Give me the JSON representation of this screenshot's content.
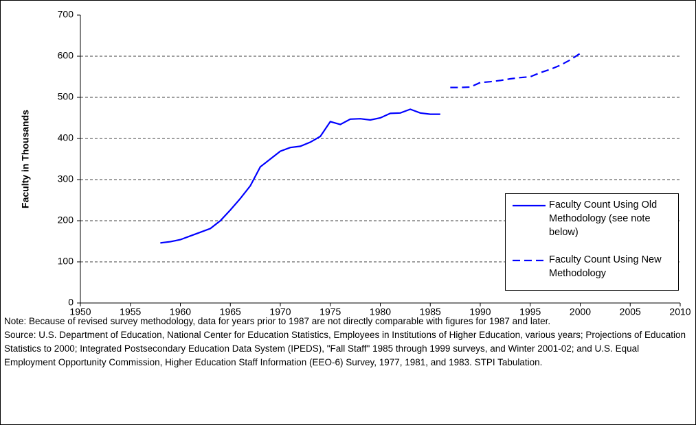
{
  "chart_data": {
    "type": "line",
    "ylabel": "Faculty in Thousands",
    "xlim": [
      1950,
      2010
    ],
    "xticks": [
      1950,
      1955,
      1960,
      1965,
      1970,
      1975,
      1980,
      1985,
      1990,
      1995,
      2000,
      2005,
      2010
    ],
    "ylim": [
      0,
      700
    ],
    "yticks": [
      0,
      100,
      200,
      300,
      400,
      500,
      600,
      700
    ],
    "grid": true,
    "legend": "right",
    "series": [
      {
        "name": "Faculty Count Using Old Methodology (see note below)",
        "color": "#0000ff",
        "dash": false,
        "x": [
          1958,
          1959,
          1960,
          1961,
          1962,
          1963,
          1964,
          1965,
          1966,
          1967,
          1968,
          1969,
          1970,
          1971,
          1972,
          1973,
          1974,
          1975,
          1976,
          1977,
          1978,
          1979,
          1980,
          1981,
          1982,
          1983,
          1984,
          1985,
          1986
        ],
        "values": [
          146,
          149,
          154,
          163,
          172,
          181,
          200,
          226,
          254,
          285,
          331,
          350,
          369,
          378,
          381,
          391,
          405,
          441,
          434,
          447,
          448,
          445,
          450,
          461,
          462,
          471,
          462,
          459,
          459
        ]
      },
      {
        "name": "Faculty Count Using New Methodology",
        "color": "#0000ff",
        "dash": true,
        "x": [
          1987,
          1988,
          1989,
          1990,
          1991,
          1992,
          1993,
          1994,
          1995,
          1996,
          1997,
          1998,
          1999,
          2000
        ],
        "values": [
          524,
          524,
          525,
          536,
          538,
          541,
          545,
          548,
          550,
          560,
          568,
          578,
          591,
          607
        ]
      }
    ],
    "note": "Note: Because of revised survey methodology, data for years prior to 1987 are not directly comparable with figures for 1987 and later.",
    "source": "Source: U.S. Department of Education, National Center for Education Statistics, Employees in Institutions of Higher Education, various years; Projections of Education Statistics to 2000; Integrated Postsecondary Education Data System (IPEDS), \"Fall Staff\" 1985 through 1999 surveys, and Winter 2001-02; and U.S. Equal Employment Opportunity Commission, Higher Education Staff Information (EEO-6) Survey, 1977, 1981, and 1983. STPI Tabulation."
  }
}
